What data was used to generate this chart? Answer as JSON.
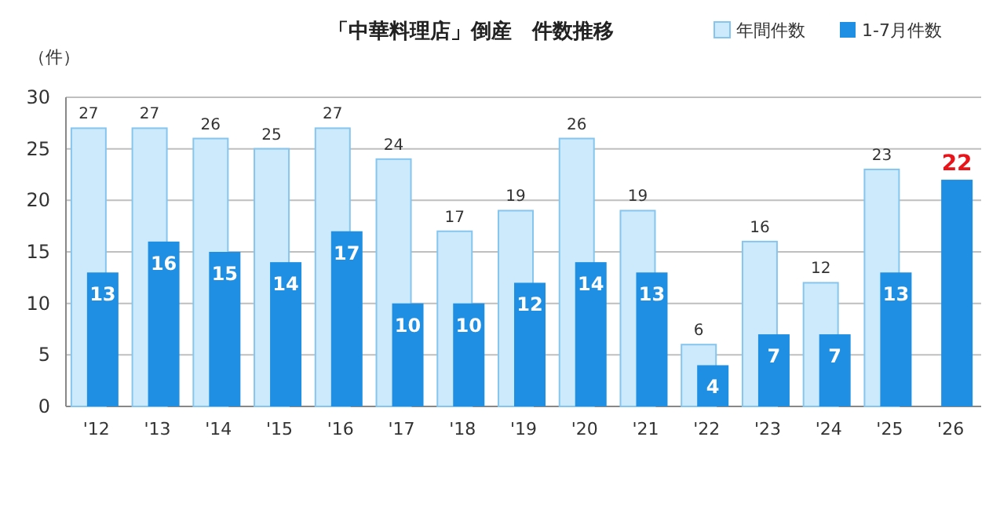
{
  "chart_data": {
    "type": "bar",
    "title": "「中華料理店」倒産　件数推移",
    "ylabel": "（件）",
    "categories": [
      "'12",
      "'13",
      "'14",
      "'15",
      "'16",
      "'17",
      "'18",
      "'19",
      "'20",
      "'21",
      "'22",
      "'23",
      "'24",
      "'25",
      "'26"
    ],
    "series": [
      {
        "name": "年間件数",
        "color": "#cdeafc",
        "values": [
          27,
          27,
          26,
          25,
          27,
          24,
          17,
          19,
          26,
          19,
          6,
          16,
          12,
          23,
          null
        ],
        "value_labels": [
          "27",
          "27",
          "26",
          "25",
          "27",
          "24",
          "17",
          "19",
          "26",
          "19",
          "6",
          "16",
          "12",
          "23",
          null
        ]
      },
      {
        "name": "1-7月件数",
        "color": "#1f8fe3",
        "values": [
          13,
          16,
          15,
          14,
          17,
          10,
          10,
          12,
          14,
          13,
          4,
          7,
          7,
          13,
          22
        ],
        "value_labels": [
          "13",
          "16",
          "15",
          "14",
          "17",
          "10",
          "10",
          "12",
          "14",
          "13",
          "4",
          "7",
          "7",
          "13",
          null
        ]
      }
    ],
    "annotations": [
      {
        "text": "22",
        "x": "'26",
        "y": 22
      }
    ],
    "ylim": [
      0,
      30
    ],
    "yticks": [
      0,
      5,
      10,
      15,
      20,
      25,
      30
    ],
    "grid": "y",
    "legend": "top right"
  }
}
